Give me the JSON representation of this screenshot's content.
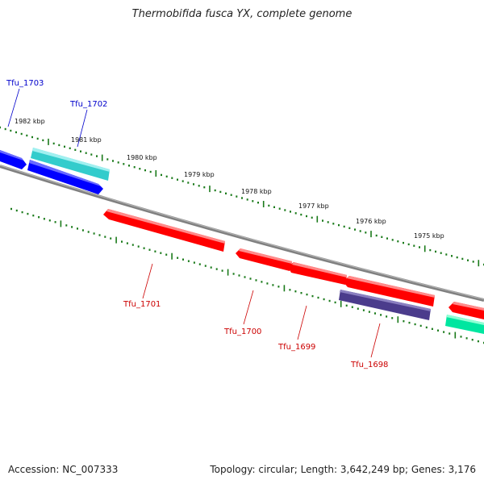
{
  "title": "Thermobifida fusca YX, complete genome",
  "footer": {
    "accession": "Accession: NC_007333",
    "summary": "Topology: circular; Length: 3,642,249 bp; Genes: 3,176"
  },
  "colors": {
    "backbone": "#808080",
    "ticks": "#1a7a1a",
    "label_forward": "#0000cc",
    "label_reverse": "#cc0000",
    "blue": "#0000ff",
    "cyan": "#33cccc",
    "red": "#ff0000",
    "purple": "#4b3c8c",
    "green": "#00e6a0"
  },
  "kbp_labels": [
    "1982 kbp",
    "1981 kbp",
    "1980 kbp",
    "1979 kbp",
    "1978 kbp",
    "1977 kbp",
    "1976 kbp",
    "1975 kbp"
  ],
  "gene_labels": [
    {
      "text": "Tfu_1703",
      "strand": "forward"
    },
    {
      "text": "Tfu_1702",
      "strand": "forward"
    },
    {
      "text": "Tfu_1701",
      "strand": "reverse"
    },
    {
      "text": "Tfu_1700",
      "strand": "reverse"
    },
    {
      "text": "Tfu_1699",
      "strand": "reverse"
    },
    {
      "text": "Tfu_1698",
      "strand": "reverse"
    }
  ]
}
